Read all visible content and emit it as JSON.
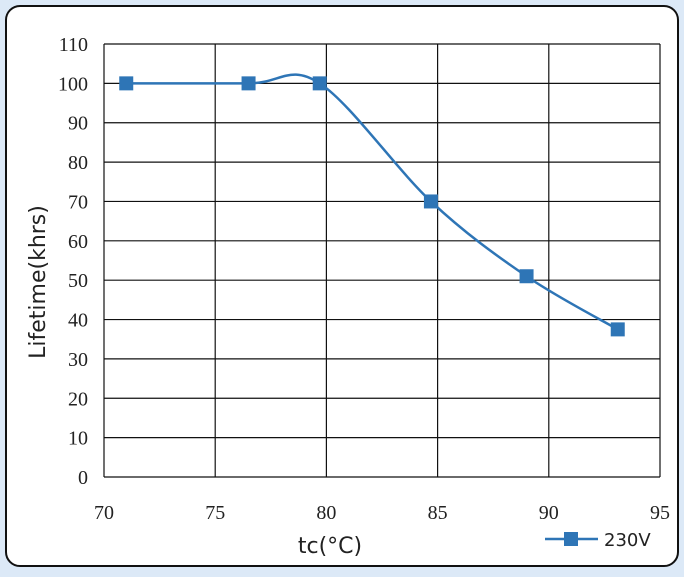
{
  "chart_data": {
    "type": "line",
    "title": "",
    "xlabel": "tc(°C)",
    "ylabel": "Lifetime(khrs)",
    "xlim": [
      70,
      95
    ],
    "ylim": [
      0,
      110
    ],
    "xticks": [
      70,
      75,
      80,
      85,
      90,
      95
    ],
    "yticks": [
      0,
      10,
      20,
      30,
      40,
      50,
      60,
      70,
      80,
      90,
      100,
      110
    ],
    "grid": true,
    "smooth": true,
    "legend_position": "bottom-right",
    "series": [
      {
        "name": "230V",
        "color": "#2e75b6",
        "marker": "square",
        "x": [
          71,
          76.5,
          79.7,
          84.7,
          89,
          93.1
        ],
        "y": [
          100,
          100,
          100,
          70,
          51,
          37.5
        ]
      }
    ]
  }
}
